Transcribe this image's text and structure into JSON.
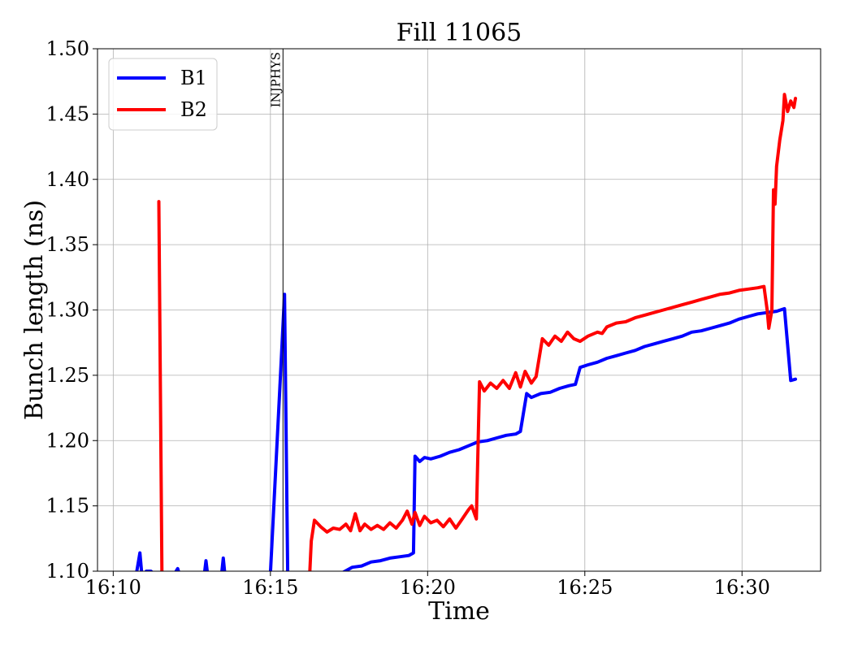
{
  "chart_data": {
    "type": "line",
    "title": "Fill 11065",
    "xlabel": "Time",
    "ylabel": "Bunch length (ns)",
    "xlim": [
      "16:09.5",
      "16:32.5"
    ],
    "ylim": [
      1.1,
      1.5
    ],
    "x_ticks": [
      "16:10",
      "16:15",
      "16:20",
      "16:25",
      "16:30"
    ],
    "y_ticks": [
      "1.10",
      "1.15",
      "1.20",
      "1.25",
      "1.30",
      "1.35",
      "1.40",
      "1.45",
      "1.50"
    ],
    "grid": true,
    "legend_position": "top-left",
    "annotations": [
      {
        "label": "INJPHYS",
        "time": "16:15.4"
      }
    ],
    "series": [
      {
        "name": "B1",
        "color": "#0000ff",
        "points": [
          [
            "16:10.75",
            1.1
          ],
          [
            "16:10.85",
            1.114
          ],
          [
            "16:10.9",
            1.1
          ],
          [
            "16:11.0",
            1.098
          ],
          [
            "16:11.05",
            1.1
          ],
          [
            "16:11.2",
            1.1
          ],
          [
            "16:11.3",
            1.098
          ],
          [
            "16:11.95",
            1.098
          ],
          [
            "16:12.05",
            1.102
          ],
          [
            "16:12.1",
            1.098
          ],
          [
            "16:12.9",
            1.098
          ],
          [
            "16:12.95",
            1.108
          ],
          [
            "16:13.0",
            1.098
          ],
          [
            "16:13.45",
            1.098
          ],
          [
            "16:13.5",
            1.11
          ],
          [
            "16:13.55",
            1.098
          ],
          [
            "16:15.0",
            1.098
          ],
          [
            "16:15.3",
            1.24
          ],
          [
            "16:15.45",
            1.312
          ],
          [
            "16:15.55",
            1.098
          ],
          [
            "16:17.0",
            1.099
          ],
          [
            "16:17.3",
            1.099
          ],
          [
            "16:17.6",
            1.103
          ],
          [
            "16:17.9",
            1.104
          ],
          [
            "16:18.2",
            1.107
          ],
          [
            "16:18.5",
            1.108
          ],
          [
            "16:18.8",
            1.11
          ],
          [
            "16:19.1",
            1.111
          ],
          [
            "16:19.4",
            1.112
          ],
          [
            "16:19.55",
            1.114
          ],
          [
            "16:19.6",
            1.188
          ],
          [
            "16:19.75",
            1.184
          ],
          [
            "16:19.9",
            1.187
          ],
          [
            "16:20.1",
            1.186
          ],
          [
            "16:20.4",
            1.188
          ],
          [
            "16:20.7",
            1.191
          ],
          [
            "16:21.0",
            1.193
          ],
          [
            "16:21.3",
            1.196
          ],
          [
            "16:21.6",
            1.199
          ],
          [
            "16:21.9",
            1.2
          ],
          [
            "16:22.2",
            1.202
          ],
          [
            "16:22.5",
            1.204
          ],
          [
            "16:22.8",
            1.205
          ],
          [
            "16:22.95",
            1.207
          ],
          [
            "16:23.15",
            1.236
          ],
          [
            "16:23.3",
            1.233
          ],
          [
            "16:23.6",
            1.236
          ],
          [
            "16:23.9",
            1.237
          ],
          [
            "16:24.2",
            1.24
          ],
          [
            "16:24.5",
            1.242
          ],
          [
            "16:24.7",
            1.243
          ],
          [
            "16:24.85",
            1.256
          ],
          [
            "16:25.1",
            1.258
          ],
          [
            "16:25.4",
            1.26
          ],
          [
            "16:25.7",
            1.263
          ],
          [
            "16:26.0",
            1.265
          ],
          [
            "16:26.3",
            1.267
          ],
          [
            "16:26.6",
            1.269
          ],
          [
            "16:26.9",
            1.272
          ],
          [
            "16:27.2",
            1.274
          ],
          [
            "16:27.5",
            1.276
          ],
          [
            "16:27.8",
            1.278
          ],
          [
            "16:28.1",
            1.28
          ],
          [
            "16:28.4",
            1.283
          ],
          [
            "16:28.7",
            1.284
          ],
          [
            "16:29.0",
            1.286
          ],
          [
            "16:29.3",
            1.288
          ],
          [
            "16:29.6",
            1.29
          ],
          [
            "16:29.9",
            1.293
          ],
          [
            "16:30.2",
            1.295
          ],
          [
            "16:30.5",
            1.297
          ],
          [
            "16:30.8",
            1.298
          ],
          [
            "16:31.1",
            1.299
          ],
          [
            "16:31.35",
            1.301
          ],
          [
            "16:31.55",
            1.246
          ],
          [
            "16:31.7",
            1.247
          ]
        ]
      },
      {
        "name": "B2",
        "color": "#ff0000",
        "points": [
          [
            "16:11.45",
            1.383
          ],
          [
            "16:11.55",
            1.098
          ],
          [
            "16:16.25",
            1.098
          ],
          [
            "16:16.3",
            1.123
          ],
          [
            "16:16.4",
            1.139
          ],
          [
            "16:16.6",
            1.134
          ],
          [
            "16:16.8",
            1.13
          ],
          [
            "16:17.0",
            1.133
          ],
          [
            "16:17.2",
            1.132
          ],
          [
            "16:17.4",
            1.136
          ],
          [
            "16:17.55",
            1.131
          ],
          [
            "16:17.7",
            1.144
          ],
          [
            "16:17.85",
            1.131
          ],
          [
            "16:18.0",
            1.136
          ],
          [
            "16:18.2",
            1.132
          ],
          [
            "16:18.4",
            1.135
          ],
          [
            "16:18.6",
            1.132
          ],
          [
            "16:18.8",
            1.137
          ],
          [
            "16:19.0",
            1.133
          ],
          [
            "16:19.2",
            1.139
          ],
          [
            "16:19.35",
            1.146
          ],
          [
            "16:19.5",
            1.136
          ],
          [
            "16:19.6",
            1.145
          ],
          [
            "16:19.75",
            1.135
          ],
          [
            "16:19.9",
            1.142
          ],
          [
            "16:20.1",
            1.137
          ],
          [
            "16:20.3",
            1.139
          ],
          [
            "16:20.5",
            1.134
          ],
          [
            "16:20.7",
            1.14
          ],
          [
            "16:20.9",
            1.133
          ],
          [
            "16:21.1",
            1.14
          ],
          [
            "16:21.3",
            1.147
          ],
          [
            "16:21.4",
            1.15
          ],
          [
            "16:21.55",
            1.14
          ],
          [
            "16:21.65",
            1.245
          ],
          [
            "16:21.8",
            1.238
          ],
          [
            "16:22.0",
            1.244
          ],
          [
            "16:22.2",
            1.24
          ],
          [
            "16:22.4",
            1.246
          ],
          [
            "16:22.6",
            1.24
          ],
          [
            "16:22.8",
            1.252
          ],
          [
            "16:22.95",
            1.241
          ],
          [
            "16:23.1",
            1.253
          ],
          [
            "16:23.3",
            1.244
          ],
          [
            "16:23.45",
            1.249
          ],
          [
            "16:23.65",
            1.278
          ],
          [
            "16:23.85",
            1.273
          ],
          [
            "16:24.05",
            1.28
          ],
          [
            "16:24.25",
            1.276
          ],
          [
            "16:24.45",
            1.283
          ],
          [
            "16:24.65",
            1.278
          ],
          [
            "16:24.85",
            1.276
          ],
          [
            "16:25.1",
            1.28
          ],
          [
            "16:25.4",
            1.283
          ],
          [
            "16:25.55",
            1.282
          ],
          [
            "16:25.7",
            1.287
          ],
          [
            "16:26.0",
            1.29
          ],
          [
            "16:26.3",
            1.291
          ],
          [
            "16:26.6",
            1.294
          ],
          [
            "16:26.9",
            1.296
          ],
          [
            "16:27.2",
            1.298
          ],
          [
            "16:27.5",
            1.3
          ],
          [
            "16:27.8",
            1.302
          ],
          [
            "16:28.1",
            1.304
          ],
          [
            "16:28.4",
            1.306
          ],
          [
            "16:28.7",
            1.308
          ],
          [
            "16:29.0",
            1.31
          ],
          [
            "16:29.3",
            1.312
          ],
          [
            "16:29.6",
            1.313
          ],
          [
            "16:29.9",
            1.315
          ],
          [
            "16:30.2",
            1.316
          ],
          [
            "16:30.5",
            1.317
          ],
          [
            "16:30.7",
            1.318
          ],
          [
            "16:30.8",
            1.3
          ],
          [
            "16:30.85",
            1.286
          ],
          [
            "16:30.95",
            1.3
          ],
          [
            "16:31.0",
            1.392
          ],
          [
            "16:31.05",
            1.381
          ],
          [
            "16:31.1",
            1.41
          ],
          [
            "16:31.2",
            1.43
          ],
          [
            "16:31.3",
            1.445
          ],
          [
            "16:31.35",
            1.465
          ],
          [
            "16:31.45",
            1.452
          ],
          [
            "16:31.55",
            1.46
          ],
          [
            "16:31.65",
            1.455
          ],
          [
            "16:31.7",
            1.462
          ]
        ]
      }
    ]
  }
}
